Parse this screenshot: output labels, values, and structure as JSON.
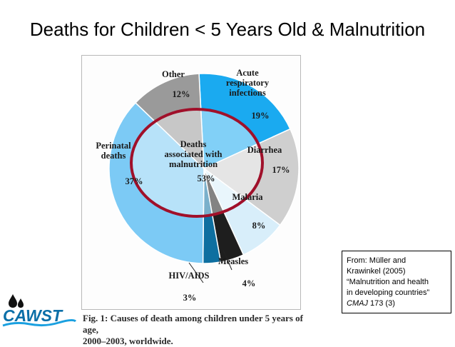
{
  "slide": {
    "title": "Deaths for Children < 5 Years Old & Malnutrition"
  },
  "logo": {
    "text": "CAWST"
  },
  "caption": {
    "line1": "Fig. 1: Causes of death among children under 5 years of age,",
    "line2": "2000–2003, worldwide."
  },
  "source": {
    "line1": "From: Müller and",
    "line2": "Krawinkel (2005)",
    "line3": "“Malnutrition and health",
    "line4": "in developing countries”",
    "journal": "CMAJ",
    "citation": " 173 (3)"
  },
  "chart_data": {
    "type": "pie",
    "start_angle_deg": -3,
    "slices": [
      {
        "label_lines": [
          "Acute",
          "respiratory",
          "infections"
        ],
        "value": 19,
        "value_label": "19%",
        "color": "#1aaaf0"
      },
      {
        "label_lines": [
          "Diarrhea"
        ],
        "value": 17,
        "value_label": "17%",
        "color": "#cfcfcf"
      },
      {
        "label_lines": [
          "Malaria"
        ],
        "value": 8,
        "value_label": "8%",
        "color": "#d8eefa"
      },
      {
        "label_lines": [
          "Measles"
        ],
        "value": 4,
        "value_label": "4%",
        "color": "#1e1e1e"
      },
      {
        "label_lines": [
          "HIV/AIDS"
        ],
        "value": 3,
        "value_label": "3%",
        "color": "#0e6fa0"
      },
      {
        "label_lines": [
          "Perinatal",
          "deaths"
        ],
        "value": 37,
        "value_label": "37%",
        "color": "#7ccaf5"
      },
      {
        "label_lines": [
          "Other"
        ],
        "value": 12,
        "value_label": "12%",
        "color": "#9a9a9a"
      }
    ],
    "inner_overlay": {
      "label_lines": [
        "Deaths",
        "associated with",
        "malnutrition"
      ],
      "value": 53,
      "value_label": "53%",
      "ring_color": "#a0102a"
    },
    "colors": {
      "border": "#ffffff",
      "inner_tint": "#ffffff"
    }
  }
}
